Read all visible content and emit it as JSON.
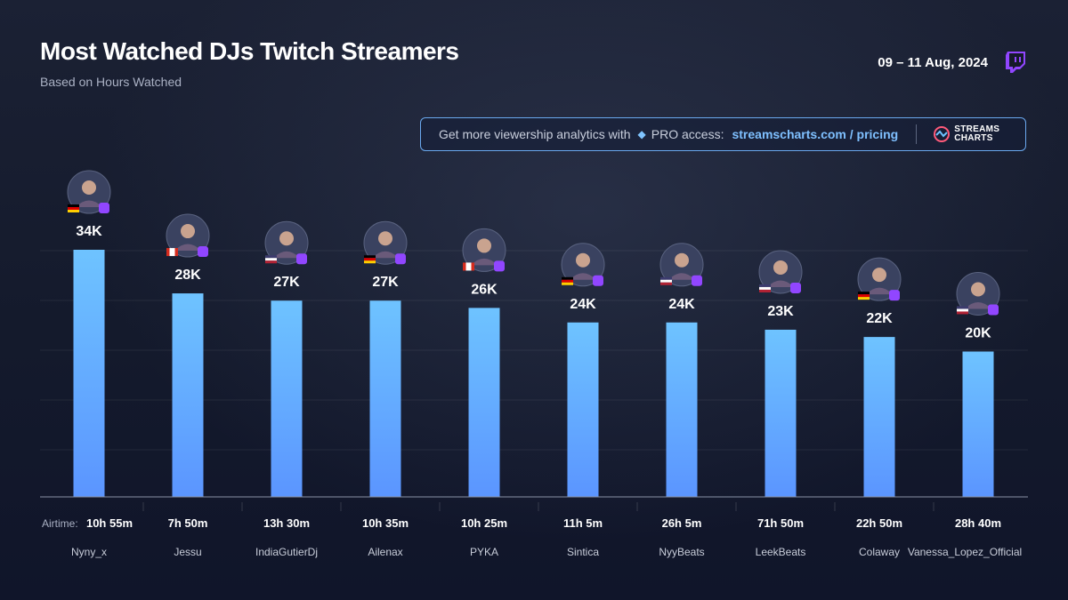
{
  "header": {
    "title": "Most Watched DJs Twitch Streamers",
    "subtitle": "Based on Hours Watched",
    "date_range": "09 – 11 Aug, 2024"
  },
  "promo": {
    "text": "Get more viewership analytics with",
    "pro_text": "PRO access:",
    "link": "streamscharts.com / pricing",
    "logo_line1": "STREAMS",
    "logo_line2": "CHARTS"
  },
  "colors": {
    "bar_top": "#6ec3ff",
    "bar_bottom": "#5b95ff",
    "twitch": "#9146ff",
    "accent": "#7fc0ff"
  },
  "airtime_label": "Airtime:",
  "chart_data": {
    "type": "bar",
    "categories": [
      "Nyny_x",
      "Jessu",
      "IndiaGutierDj",
      "Ailenax",
      "PYKA",
      "Sintica",
      "NyyBeats",
      "LeekBeats",
      "Colaway",
      "Vanessa_Lopez_Official"
    ],
    "values": [
      34000,
      28000,
      27000,
      27000,
      26000,
      24000,
      24000,
      23000,
      22000,
      20000
    ],
    "value_labels": [
      "34K",
      "28K",
      "27K",
      "27K",
      "26K",
      "24K",
      "24K",
      "23K",
      "22K",
      "20K"
    ],
    "airtime": [
      "10h 55m",
      "7h 50m",
      "13h 30m",
      "10h 35m",
      "10h 25m",
      "11h 5m",
      "26h 5m",
      "71h 50m",
      "22h 50m",
      "28h 40m"
    ],
    "flags": [
      "DE",
      "CA",
      "US",
      "DE",
      "CA",
      "DE",
      "US",
      "US",
      "DE",
      "US"
    ],
    "title": "Most Watched DJs Twitch Streamers",
    "xlabel": "",
    "ylabel": "",
    "ylim": [
      0,
      34000
    ],
    "grid": true
  }
}
